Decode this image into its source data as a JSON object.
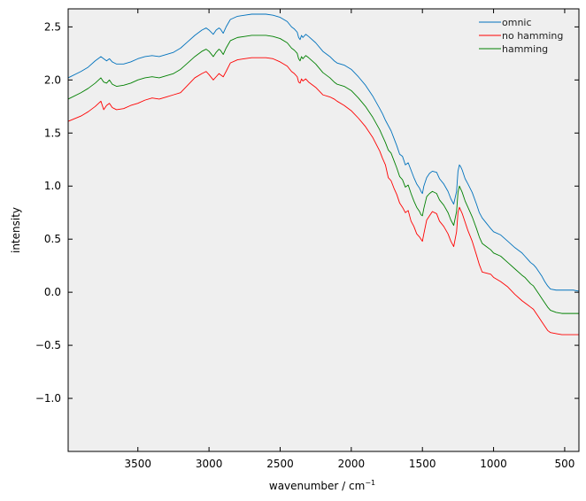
{
  "chart_data": {
    "type": "line",
    "title": "",
    "xlabel": "wavenumber / cm",
    "xlabel_sup": "−1",
    "ylabel": "intensity",
    "xlim": [
      3990,
      400
    ],
    "ylim": [
      -1.5,
      2.67
    ],
    "x_ticks": [
      3500,
      3000,
      2500,
      2000,
      1500,
      1000,
      500
    ],
    "y_ticks": [
      -1.0,
      -0.5,
      0.0,
      0.5,
      1.0,
      1.5,
      2.0,
      2.5
    ],
    "x_tick_labels": [
      "3500",
      "3000",
      "2500",
      "2000",
      "1500",
      "1000",
      "500"
    ],
    "y_tick_labels": [
      "−1.0",
      "−0.5",
      "0.0",
      "0.5",
      "1.0",
      "1.5",
      "2.0",
      "2.5"
    ],
    "grid": false,
    "legend_position": "top-right",
    "background": "#efefef",
    "series": [
      {
        "name": "omnic",
        "color": "#0072bd",
        "x": [
          3990,
          3900,
          3850,
          3800,
          3760,
          3740,
          3720,
          3700,
          3680,
          3650,
          3600,
          3550,
          3500,
          3450,
          3400,
          3350,
          3300,
          3250,
          3200,
          3150,
          3100,
          3050,
          3020,
          3000,
          2970,
          2950,
          2930,
          2920,
          2900,
          2880,
          2850,
          2800,
          2750,
          2700,
          2650,
          2600,
          2550,
          2500,
          2450,
          2420,
          2400,
          2380,
          2370,
          2360,
          2350,
          2340,
          2320,
          2300,
          2250,
          2200,
          2150,
          2120,
          2100,
          2050,
          2000,
          1950,
          1900,
          1850,
          1800,
          1780,
          1760,
          1740,
          1720,
          1700,
          1680,
          1660,
          1640,
          1620,
          1600,
          1580,
          1560,
          1540,
          1520,
          1510,
          1500,
          1490,
          1470,
          1450,
          1430,
          1400,
          1380,
          1350,
          1320,
          1300,
          1280,
          1260,
          1250,
          1240,
          1230,
          1220,
          1200,
          1180,
          1150,
          1120,
          1100,
          1080,
          1050,
          1020,
          1000,
          950,
          900,
          850,
          800,
          780,
          760,
          740,
          720,
          700,
          680,
          660,
          640,
          620,
          600,
          560,
          520,
          480,
          440,
          400
        ],
        "y": [
          2.02,
          2.08,
          2.12,
          2.18,
          2.22,
          2.2,
          2.18,
          2.2,
          2.17,
          2.15,
          2.15,
          2.17,
          2.2,
          2.22,
          2.23,
          2.22,
          2.24,
          2.26,
          2.3,
          2.36,
          2.42,
          2.47,
          2.49,
          2.47,
          2.43,
          2.47,
          2.49,
          2.48,
          2.44,
          2.5,
          2.57,
          2.6,
          2.61,
          2.62,
          2.62,
          2.62,
          2.61,
          2.59,
          2.55,
          2.5,
          2.48,
          2.45,
          2.4,
          2.38,
          2.42,
          2.4,
          2.43,
          2.41,
          2.35,
          2.27,
          2.22,
          2.18,
          2.16,
          2.14,
          2.1,
          2.03,
          1.95,
          1.85,
          1.73,
          1.68,
          1.62,
          1.57,
          1.52,
          1.45,
          1.38,
          1.3,
          1.28,
          1.2,
          1.22,
          1.15,
          1.08,
          1.02,
          0.98,
          0.95,
          0.93,
          1.0,
          1.08,
          1.12,
          1.14,
          1.13,
          1.07,
          1.02,
          0.95,
          0.88,
          0.83,
          0.95,
          1.14,
          1.2,
          1.18,
          1.15,
          1.07,
          1.02,
          0.94,
          0.83,
          0.75,
          0.7,
          0.65,
          0.6,
          0.57,
          0.54,
          0.48,
          0.42,
          0.37,
          0.34,
          0.31,
          0.28,
          0.26,
          0.23,
          0.19,
          0.15,
          0.1,
          0.06,
          0.03,
          0.02,
          0.02,
          0.02,
          0.02,
          0.01
        ]
      },
      {
        "name": "no hamming",
        "color": "#ff0000",
        "x": [
          3990,
          3900,
          3850,
          3800,
          3760,
          3740,
          3720,
          3700,
          3680,
          3650,
          3600,
          3550,
          3500,
          3450,
          3400,
          3350,
          3300,
          3250,
          3200,
          3150,
          3100,
          3050,
          3020,
          3000,
          2970,
          2950,
          2930,
          2920,
          2900,
          2880,
          2850,
          2800,
          2750,
          2700,
          2650,
          2600,
          2550,
          2500,
          2450,
          2420,
          2400,
          2380,
          2370,
          2360,
          2350,
          2340,
          2320,
          2300,
          2250,
          2200,
          2150,
          2120,
          2100,
          2050,
          2000,
          1950,
          1900,
          1850,
          1800,
          1780,
          1760,
          1740,
          1720,
          1700,
          1680,
          1660,
          1640,
          1620,
          1600,
          1580,
          1560,
          1540,
          1520,
          1510,
          1500,
          1490,
          1470,
          1450,
          1430,
          1400,
          1380,
          1350,
          1320,
          1300,
          1280,
          1260,
          1250,
          1240,
          1230,
          1220,
          1200,
          1180,
          1150,
          1120,
          1100,
          1080,
          1050,
          1020,
          1000,
          950,
          900,
          850,
          800,
          780,
          760,
          740,
          720,
          700,
          680,
          660,
          640,
          620,
          600,
          560,
          520,
          480,
          440,
          400
        ],
        "y": [
          1.61,
          1.66,
          1.7,
          1.75,
          1.8,
          1.72,
          1.76,
          1.78,
          1.74,
          1.72,
          1.73,
          1.76,
          1.78,
          1.81,
          1.83,
          1.82,
          1.84,
          1.86,
          1.88,
          1.95,
          2.02,
          2.06,
          2.08,
          2.05,
          2.0,
          2.03,
          2.06,
          2.05,
          2.03,
          2.08,
          2.16,
          2.19,
          2.2,
          2.21,
          2.21,
          2.21,
          2.2,
          2.17,
          2.13,
          2.08,
          2.06,
          2.03,
          1.98,
          1.97,
          2.01,
          1.99,
          2.01,
          1.98,
          1.93,
          1.86,
          1.84,
          1.82,
          1.8,
          1.76,
          1.71,
          1.64,
          1.56,
          1.46,
          1.33,
          1.26,
          1.2,
          1.08,
          1.05,
          0.98,
          0.92,
          0.84,
          0.8,
          0.75,
          0.77,
          0.67,
          0.62,
          0.55,
          0.52,
          0.5,
          0.48,
          0.55,
          0.68,
          0.72,
          0.76,
          0.74,
          0.67,
          0.62,
          0.55,
          0.48,
          0.43,
          0.57,
          0.75,
          0.8,
          0.77,
          0.74,
          0.66,
          0.58,
          0.48,
          0.35,
          0.26,
          0.19,
          0.18,
          0.17,
          0.14,
          0.1,
          0.05,
          -0.02,
          -0.08,
          -0.1,
          -0.12,
          -0.14,
          -0.16,
          -0.2,
          -0.24,
          -0.28,
          -0.32,
          -0.36,
          -0.38,
          -0.39,
          -0.4,
          -0.4,
          -0.4,
          -0.4
        ]
      },
      {
        "name": "hamming",
        "color": "#008000",
        "x": [
          3990,
          3900,
          3850,
          3800,
          3760,
          3740,
          3720,
          3700,
          3680,
          3650,
          3600,
          3550,
          3500,
          3450,
          3400,
          3350,
          3300,
          3250,
          3200,
          3150,
          3100,
          3050,
          3020,
          3000,
          2970,
          2950,
          2930,
          2920,
          2900,
          2880,
          2850,
          2800,
          2750,
          2700,
          2650,
          2600,
          2550,
          2500,
          2450,
          2420,
          2400,
          2380,
          2370,
          2360,
          2350,
          2340,
          2320,
          2300,
          2250,
          2200,
          2150,
          2120,
          2100,
          2050,
          2000,
          1950,
          1900,
          1850,
          1800,
          1780,
          1760,
          1740,
          1720,
          1700,
          1680,
          1660,
          1640,
          1620,
          1600,
          1580,
          1560,
          1540,
          1520,
          1510,
          1500,
          1490,
          1470,
          1450,
          1430,
          1400,
          1380,
          1350,
          1320,
          1300,
          1280,
          1260,
          1250,
          1240,
          1230,
          1220,
          1200,
          1180,
          1150,
          1120,
          1100,
          1080,
          1050,
          1020,
          1000,
          950,
          900,
          850,
          800,
          780,
          760,
          740,
          720,
          700,
          680,
          660,
          640,
          620,
          600,
          560,
          520,
          480,
          440,
          400
        ],
        "y": [
          1.82,
          1.88,
          1.92,
          1.97,
          2.02,
          1.98,
          1.97,
          2.0,
          1.96,
          1.94,
          1.95,
          1.97,
          2.0,
          2.02,
          2.03,
          2.02,
          2.04,
          2.06,
          2.1,
          2.16,
          2.22,
          2.27,
          2.29,
          2.27,
          2.22,
          2.26,
          2.29,
          2.28,
          2.24,
          2.3,
          2.37,
          2.4,
          2.41,
          2.42,
          2.42,
          2.42,
          2.41,
          2.39,
          2.35,
          2.3,
          2.28,
          2.25,
          2.2,
          2.18,
          2.22,
          2.2,
          2.23,
          2.21,
          2.15,
          2.07,
          2.02,
          1.98,
          1.96,
          1.94,
          1.9,
          1.83,
          1.75,
          1.65,
          1.53,
          1.47,
          1.41,
          1.34,
          1.31,
          1.24,
          1.17,
          1.09,
          1.06,
          0.99,
          1.01,
          0.93,
          0.86,
          0.8,
          0.76,
          0.73,
          0.72,
          0.79,
          0.9,
          0.93,
          0.95,
          0.93,
          0.87,
          0.82,
          0.75,
          0.68,
          0.63,
          0.76,
          0.94,
          1.0,
          0.97,
          0.94,
          0.86,
          0.8,
          0.71,
          0.6,
          0.52,
          0.46,
          0.43,
          0.4,
          0.37,
          0.34,
          0.28,
          0.22,
          0.16,
          0.14,
          0.11,
          0.08,
          0.06,
          0.02,
          -0.02,
          -0.06,
          -0.1,
          -0.14,
          -0.17,
          -0.19,
          -0.2,
          -0.2,
          -0.2,
          -0.2
        ]
      }
    ]
  }
}
